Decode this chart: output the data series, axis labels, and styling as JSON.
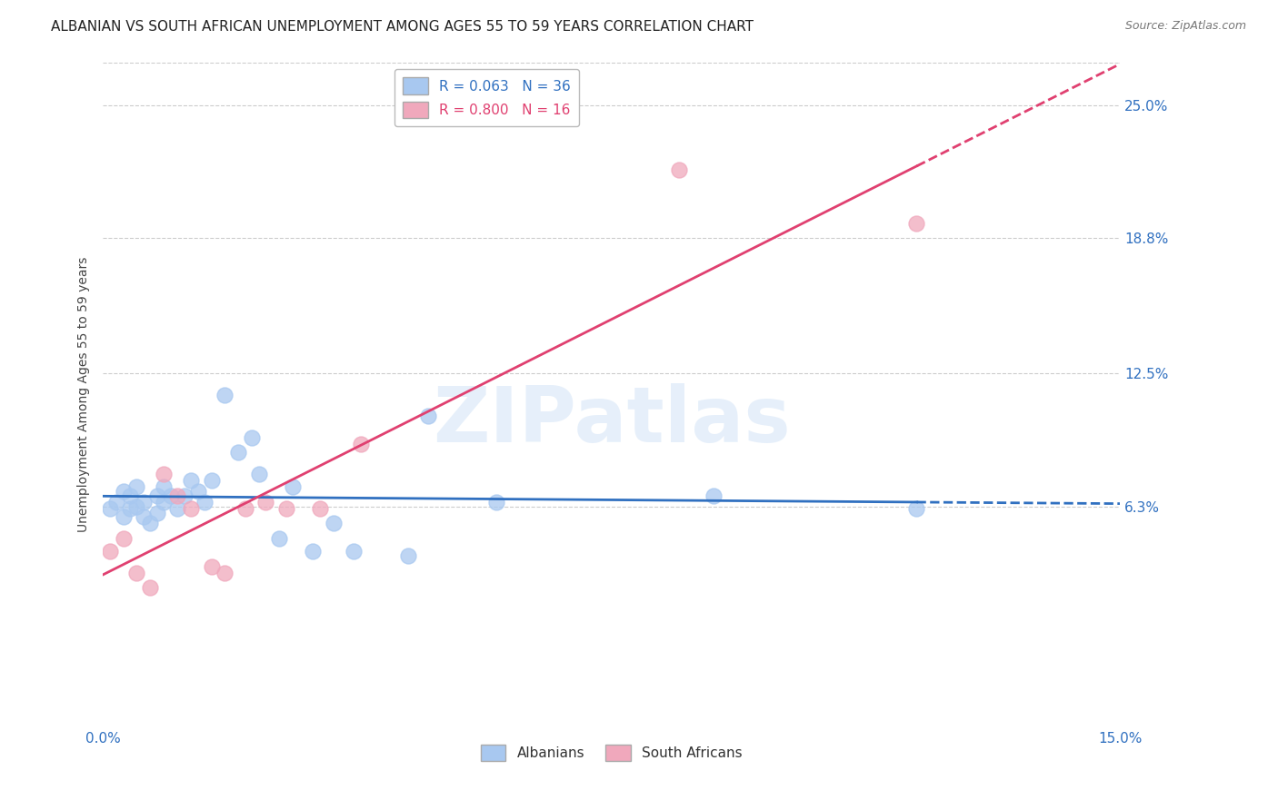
{
  "title": "ALBANIAN VS SOUTH AFRICAN UNEMPLOYMENT AMONG AGES 55 TO 59 YEARS CORRELATION CHART",
  "source": "Source: ZipAtlas.com",
  "ylabel": "Unemployment Among Ages 55 to 59 years",
  "xlim": [
    0.0,
    0.15
  ],
  "ylim": [
    -0.04,
    0.27
  ],
  "yticks": [
    0.063,
    0.125,
    0.188,
    0.25
  ],
  "ytick_labels": [
    "6.3%",
    "12.5%",
    "18.8%",
    "25.0%"
  ],
  "xticks": [
    0.0,
    0.03,
    0.06,
    0.09,
    0.12,
    0.15
  ],
  "xtick_labels": [
    "0.0%",
    "",
    "",
    "",
    "",
    "15.0%"
  ],
  "albanians_R": 0.063,
  "albanians_N": 36,
  "southafricans_R": 0.8,
  "southafricans_N": 16,
  "albanian_color": "#A8C8F0",
  "southafrican_color": "#F0A8BC",
  "trend_albanian_color": "#3070C0",
  "trend_southafrican_color": "#E04070",
  "albanian_x": [
    0.001,
    0.002,
    0.003,
    0.003,
    0.004,
    0.004,
    0.005,
    0.005,
    0.006,
    0.006,
    0.007,
    0.008,
    0.008,
    0.009,
    0.009,
    0.01,
    0.011,
    0.012,
    0.013,
    0.014,
    0.015,
    0.016,
    0.018,
    0.02,
    0.022,
    0.023,
    0.026,
    0.028,
    0.031,
    0.034,
    0.037,
    0.045,
    0.048,
    0.058,
    0.09,
    0.12
  ],
  "albanian_y": [
    0.062,
    0.065,
    0.058,
    0.07,
    0.062,
    0.068,
    0.063,
    0.072,
    0.058,
    0.065,
    0.055,
    0.06,
    0.068,
    0.065,
    0.072,
    0.068,
    0.062,
    0.068,
    0.075,
    0.07,
    0.065,
    0.075,
    0.115,
    0.088,
    0.095,
    0.078,
    0.048,
    0.072,
    0.042,
    0.055,
    0.042,
    0.04,
    0.105,
    0.065,
    0.068,
    0.062
  ],
  "southafrican_x": [
    0.001,
    0.003,
    0.005,
    0.007,
    0.009,
    0.011,
    0.013,
    0.016,
    0.018,
    0.021,
    0.024,
    0.027,
    0.032,
    0.038,
    0.085,
    0.12
  ],
  "southafrican_y": [
    0.042,
    0.048,
    0.032,
    0.025,
    0.078,
    0.068,
    0.062,
    0.035,
    0.032,
    0.062,
    0.065,
    0.062,
    0.062,
    0.092,
    0.22,
    0.195
  ],
  "background_color": "#FFFFFF",
  "grid_color": "#CCCCCC",
  "title_fontsize": 11,
  "axis_label_fontsize": 10,
  "tick_fontsize": 11,
  "legend_fontsize": 11
}
